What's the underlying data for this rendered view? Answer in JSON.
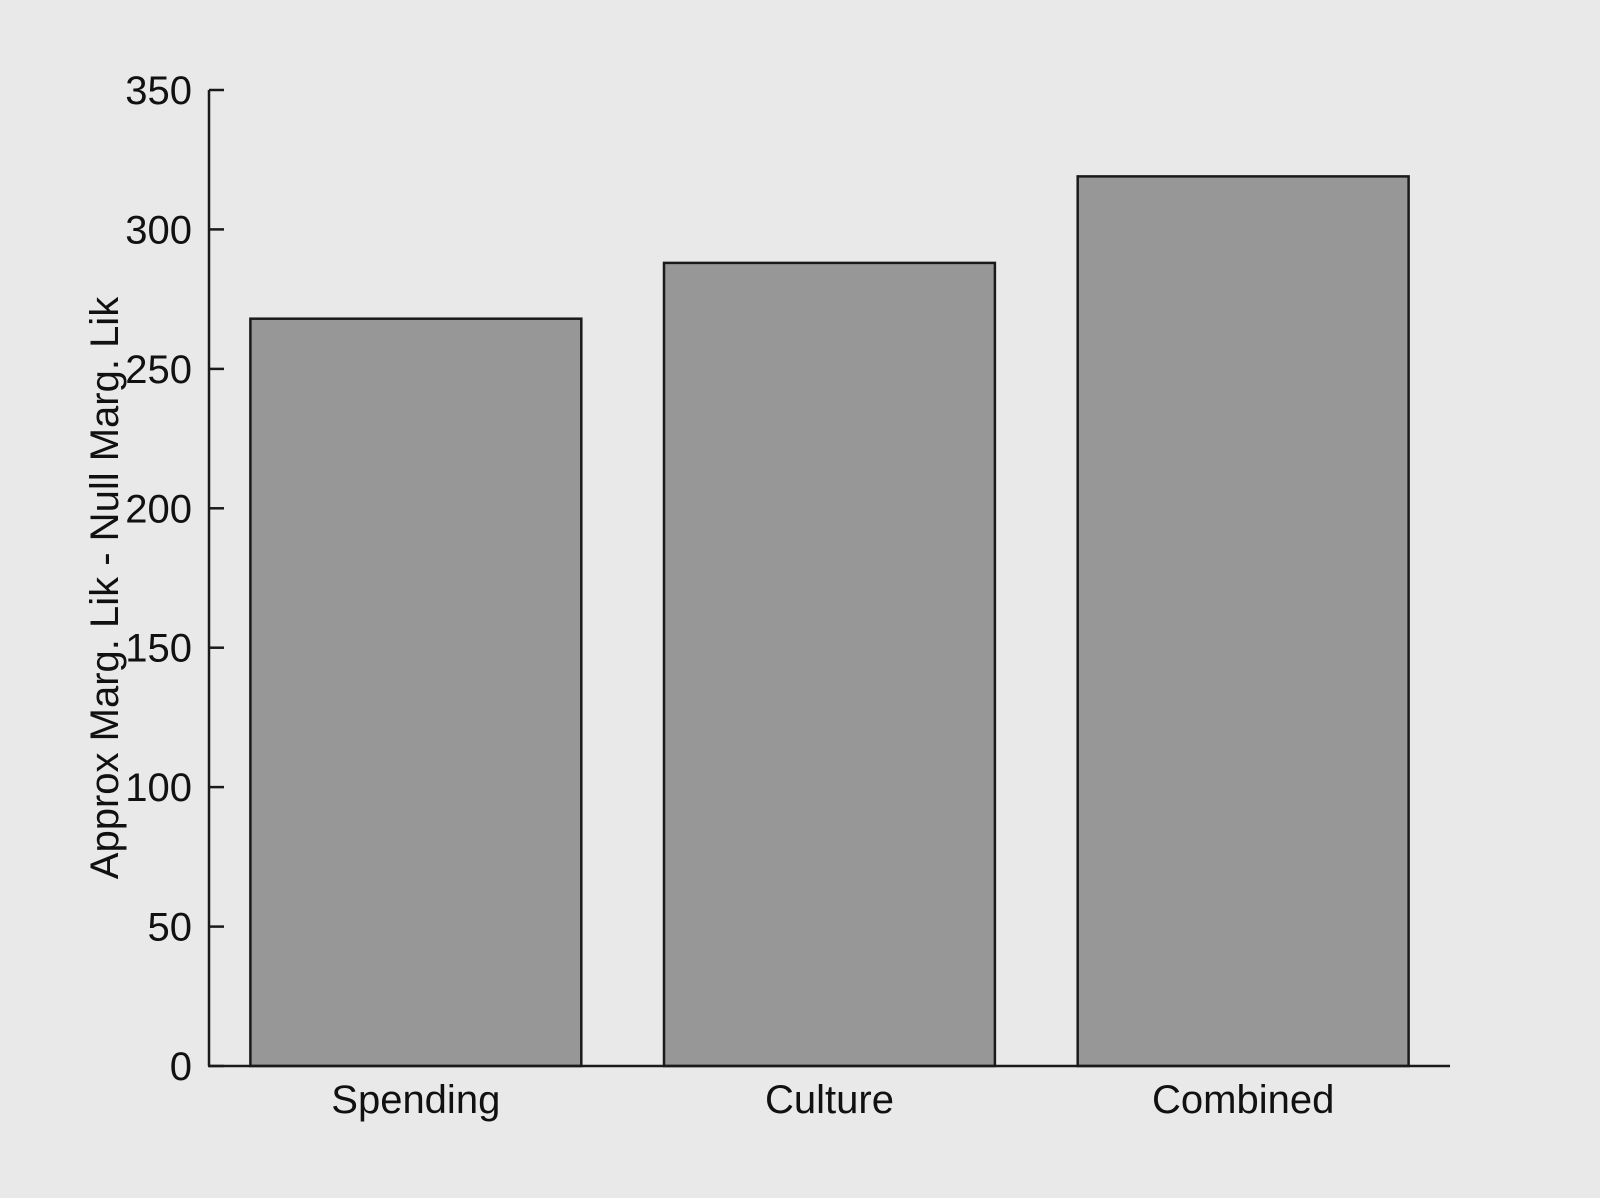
{
  "figure": {
    "background_color": "#e9e9e9"
  },
  "chart_data": {
    "type": "bar",
    "title": "",
    "categories": [
      "Spending",
      "Culture",
      "Combined"
    ],
    "values": [
      268,
      288,
      319
    ],
    "xlabel": "",
    "ylabel": "Approx Marg. Lik - Null Marg. Lik",
    "ylim": [
      0,
      350
    ],
    "yticks": [
      0,
      50,
      100,
      150,
      200,
      250,
      300,
      350
    ],
    "ytick_labels": [
      "0",
      "50",
      "100",
      "150",
      "200",
      "250",
      "300",
      "350"
    ],
    "grid": false,
    "legend_position": "none",
    "bar_fill_color": "#979797",
    "bar_edge_color": "#1a1a1a",
    "axis_color": "#1a1a1a",
    "text_color": "#111111",
    "axes_shown": [
      "left",
      "bottom"
    ],
    "tick_direction": "in"
  }
}
